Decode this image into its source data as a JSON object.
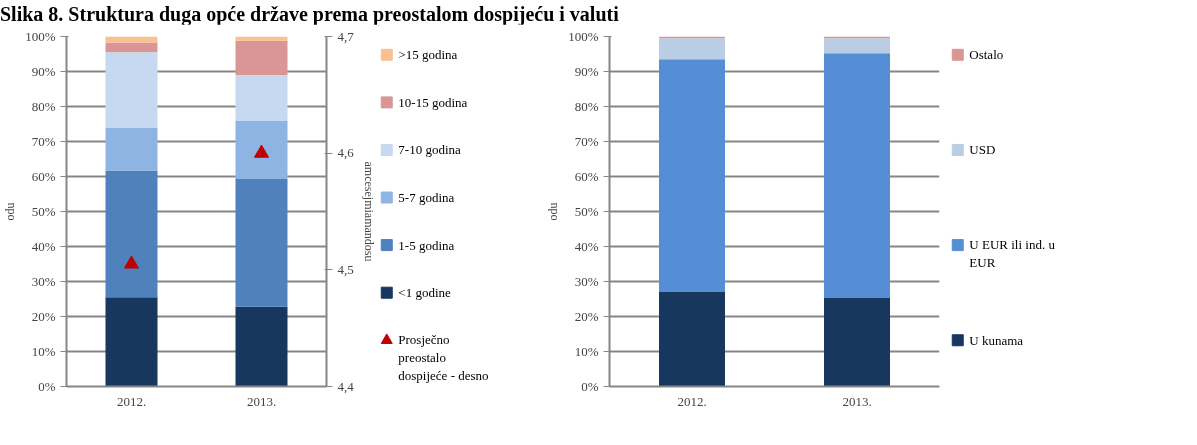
{
  "chart_data": [
    {
      "type": "bar",
      "stacked": true,
      "title": "Slika 8. Struktura duga opće države prema preostalom dospijeću i valuti",
      "ylabel": "odu",
      "y2label": "amcesejmiamandosu",
      "categories": [
        "2012.",
        "2013."
      ],
      "series": [
        {
          "name": "<1 godine",
          "color": "#17375e",
          "values": [
            25.5,
            22.8
          ]
        },
        {
          "name": "1-5 godina",
          "color": "#4f81bd",
          "values": [
            36.2,
            36.5
          ]
        },
        {
          "name": "5-7 godina",
          "color": "#8eb4e3",
          "values": [
            12.3,
            16.7
          ]
        },
        {
          "name": "7-10 godina",
          "color": "#c6d9f1",
          "values": [
            21.5,
            13.0
          ]
        },
        {
          "name": "10-15 godina",
          "color": "#d99694",
          "values": [
            2.8,
            9.8
          ]
        },
        {
          "name": ">15 godina",
          "color": "#fac090",
          "values": [
            1.7,
            1.2
          ]
        },
        {
          "name": "Prosječno preostalo dospijeće - desno",
          "type": "scatter",
          "axis": "y2",
          "marker": "triangle",
          "color": "#c00000",
          "values": [
            4.505,
            4.6
          ]
        }
      ],
      "ylim": [
        0,
        100
      ],
      "yticks": [
        {
          "value": 0,
          "label": "0%"
        },
        {
          "value": 10,
          "label": "10%"
        },
        {
          "value": 20,
          "label": "20%"
        },
        {
          "value": 30,
          "label": "30%"
        },
        {
          "value": 40,
          "label": "40%"
        },
        {
          "value": 50,
          "label": "50%"
        },
        {
          "value": 60,
          "label": "60%"
        },
        {
          "value": 70,
          "label": "70%"
        },
        {
          "value": 80,
          "label": "80%"
        },
        {
          "value": 90,
          "label": "90%"
        },
        {
          "value": 100,
          "label": "100%"
        }
      ],
      "y2lim": [
        4.4,
        4.7
      ],
      "y2ticks": [
        {
          "value": 4.4,
          "label": "4,4"
        },
        {
          "value": 4.5,
          "label": "4,5"
        },
        {
          "value": 4.6,
          "label": "4,6"
        },
        {
          "value": 4.7,
          "label": "4,7"
        }
      ],
      "grid": "y",
      "legend": "right"
    },
    {
      "type": "bar",
      "stacked": true,
      "ylabel": "odu",
      "categories": [
        "2012.",
        "2013."
      ],
      "series": [
        {
          "name": "U kunama",
          "color": "#17375e",
          "values": [
            27.0,
            25.3
          ]
        },
        {
          "name": "U EUR ili ind. u EUR",
          "color": "#558ed5",
          "values": [
            66.5,
            69.9
          ]
        },
        {
          "name": "USD",
          "color": "#b9cde5",
          "values": [
            6.0,
            4.3
          ]
        },
        {
          "name": "Ostalo",
          "color": "#d99694",
          "values": [
            0.5,
            0.5
          ]
        }
      ],
      "ylim": [
        0,
        100
      ],
      "yticks": [
        {
          "value": 0,
          "label": "0%"
        },
        {
          "value": 10,
          "label": "10%"
        },
        {
          "value": 20,
          "label": "20%"
        },
        {
          "value": 30,
          "label": "30%"
        },
        {
          "value": 40,
          "label": "40%"
        },
        {
          "value": 50,
          "label": "50%"
        },
        {
          "value": 60,
          "label": "60%"
        },
        {
          "value": 70,
          "label": "70%"
        },
        {
          "value": 80,
          "label": "80%"
        },
        {
          "value": 90,
          "label": "90%"
        },
        {
          "value": 100,
          "label": "100%"
        }
      ],
      "grid": "y",
      "legend": "right"
    }
  ]
}
